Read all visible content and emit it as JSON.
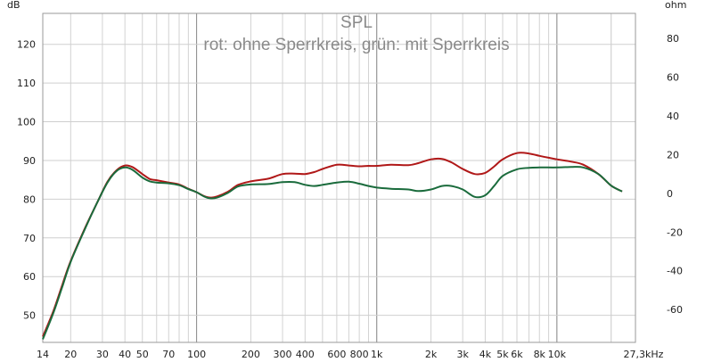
{
  "chart_data": {
    "type": "line",
    "title": "SPL",
    "subtitle": "rot: ohne Sperrkreis, grün: mit Sperrkreis",
    "ylabel_left": "dB",
    "ylabel_right": "ohm",
    "x_scale": "log",
    "xlim": [
      14,
      27300
    ],
    "ylim": [
      43,
      128
    ],
    "y2lim": [
      -77,
      93
    ],
    "grid": true,
    "x_ticks": [
      {
        "v": 14,
        "label": "14"
      },
      {
        "v": 20,
        "label": "20"
      },
      {
        "v": 30,
        "label": "30"
      },
      {
        "v": 40,
        "label": "40"
      },
      {
        "v": 50,
        "label": "50"
      },
      {
        "v": 70,
        "label": "70"
      },
      {
        "v": 100,
        "label": "100"
      },
      {
        "v": 200,
        "label": "200"
      },
      {
        "v": 300,
        "label": "300"
      },
      {
        "v": 400,
        "label": "400"
      },
      {
        "v": 600,
        "label": "600"
      },
      {
        "v": 800,
        "label": "800"
      },
      {
        "v": 1000,
        "label": "1k"
      },
      {
        "v": 2000,
        "label": "2k"
      },
      {
        "v": 3000,
        "label": "3k"
      },
      {
        "v": 4000,
        "label": "4k"
      },
      {
        "v": 5000,
        "label": "5k"
      },
      {
        "v": 6000,
        "label": "6k"
      },
      {
        "v": 8000,
        "label": "8k"
      },
      {
        "v": 10000,
        "label": "10k"
      },
      {
        "v": 27300,
        "label": "27,3kHz"
      }
    ],
    "y_ticks_left": [
      50,
      60,
      70,
      80,
      90,
      100,
      110,
      120
    ],
    "y_ticks_right": [
      -60,
      -40,
      -20,
      0,
      20,
      40,
      60,
      80
    ],
    "series": [
      {
        "name": "ohne Sperrkreis",
        "color": "#b01818",
        "points": [
          [
            14,
            44.5
          ],
          [
            16,
            51
          ],
          [
            18,
            58
          ],
          [
            20,
            64
          ],
          [
            24,
            72.5
          ],
          [
            28,
            79
          ],
          [
            32,
            84.5
          ],
          [
            36,
            87.5
          ],
          [
            40,
            88.7
          ],
          [
            44,
            88.3
          ],
          [
            50,
            86.5
          ],
          [
            55,
            85.2
          ],
          [
            60,
            84.9
          ],
          [
            70,
            84.3
          ],
          [
            80,
            83.8
          ],
          [
            90,
            82.7
          ],
          [
            100,
            81.8
          ],
          [
            110,
            80.8
          ],
          [
            120,
            80.4
          ],
          [
            130,
            80.7
          ],
          [
            150,
            82
          ],
          [
            170,
            83.7
          ],
          [
            200,
            84.6
          ],
          [
            250,
            85.3
          ],
          [
            300,
            86.5
          ],
          [
            350,
            86.6
          ],
          [
            400,
            86.5
          ],
          [
            450,
            87
          ],
          [
            500,
            87.8
          ],
          [
            600,
            88.9
          ],
          [
            700,
            88.7
          ],
          [
            800,
            88.5
          ],
          [
            900,
            88.6
          ],
          [
            1000,
            88.6
          ],
          [
            1200,
            88.9
          ],
          [
            1500,
            88.8
          ],
          [
            1700,
            89.3
          ],
          [
            2000,
            90.3
          ],
          [
            2300,
            90.4
          ],
          [
            2600,
            89.5
          ],
          [
            3000,
            87.8
          ],
          [
            3500,
            86.5
          ],
          [
            4000,
            86.8
          ],
          [
            4500,
            88.5
          ],
          [
            5000,
            90.3
          ],
          [
            6000,
            91.9
          ],
          [
            7000,
            91.8
          ],
          [
            8000,
            91.2
          ],
          [
            9000,
            90.7
          ],
          [
            10000,
            90.3
          ],
          [
            12000,
            89.7
          ],
          [
            14000,
            88.9
          ],
          [
            17000,
            86.5
          ],
          [
            20000,
            83.5
          ],
          [
            23000,
            82
          ]
        ]
      },
      {
        "name": "mit Sperrkreis",
        "color": "#1a6b3c",
        "points": [
          [
            14,
            43.8
          ],
          [
            16,
            50.5
          ],
          [
            18,
            57.5
          ],
          [
            20,
            63.8
          ],
          [
            24,
            72.3
          ],
          [
            28,
            79
          ],
          [
            32,
            84.3
          ],
          [
            36,
            87.3
          ],
          [
            40,
            88.2
          ],
          [
            44,
            87.6
          ],
          [
            50,
            85.6
          ],
          [
            55,
            84.6
          ],
          [
            60,
            84.3
          ],
          [
            70,
            84.1
          ],
          [
            80,
            83.6
          ],
          [
            90,
            82.6
          ],
          [
            100,
            81.8
          ],
          [
            110,
            80.7
          ],
          [
            120,
            80.2
          ],
          [
            130,
            80.4
          ],
          [
            150,
            81.7
          ],
          [
            170,
            83.3
          ],
          [
            200,
            83.8
          ],
          [
            250,
            83.9
          ],
          [
            300,
            84.4
          ],
          [
            350,
            84.4
          ],
          [
            400,
            83.7
          ],
          [
            450,
            83.4
          ],
          [
            500,
            83.7
          ],
          [
            600,
            84.3
          ],
          [
            700,
            84.5
          ],
          [
            800,
            84
          ],
          [
            900,
            83.4
          ],
          [
            1000,
            83
          ],
          [
            1200,
            82.7
          ],
          [
            1500,
            82.5
          ],
          [
            1700,
            82.1
          ],
          [
            2000,
            82.5
          ],
          [
            2300,
            83.4
          ],
          [
            2600,
            83.4
          ],
          [
            3000,
            82.5
          ],
          [
            3500,
            80.6
          ],
          [
            4000,
            81
          ],
          [
            4500,
            83.5
          ],
          [
            5000,
            86
          ],
          [
            6000,
            87.7
          ],
          [
            7000,
            88.1
          ],
          [
            8000,
            88.2
          ],
          [
            10000,
            88.2
          ],
          [
            12000,
            88.3
          ],
          [
            14000,
            88.2
          ],
          [
            17000,
            86.5
          ],
          [
            20000,
            83.5
          ],
          [
            23000,
            82
          ]
        ]
      }
    ]
  }
}
